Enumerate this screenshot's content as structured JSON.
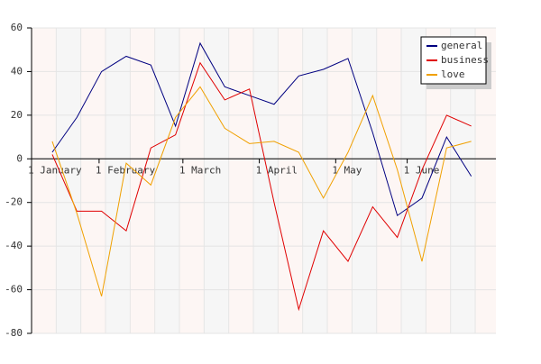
{
  "chart_data": {
    "type": "line",
    "x": [
      0,
      1,
      2,
      3,
      4,
      5,
      6,
      7,
      8,
      9,
      10,
      11,
      12,
      13,
      14,
      15,
      16,
      17
    ],
    "series": [
      {
        "name": "general",
        "color": "#000080",
        "values": [
          3,
          19,
          40,
          47,
          43,
          15,
          53,
          33,
          29,
          25,
          38,
          41,
          46,
          12,
          -26,
          -18,
          10,
          -8
        ]
      },
      {
        "name": "business",
        "color": "#e00000",
        "values": [
          2,
          -24,
          -24,
          -33,
          5,
          11,
          44,
          27,
          32,
          -20,
          -69,
          -33,
          -47,
          -22,
          -36,
          -5,
          20,
          15
        ]
      },
      {
        "name": "love",
        "color": "#f0a000",
        "values": [
          8,
          -25,
          -63,
          -2,
          -12,
          19,
          33,
          14,
          7,
          8,
          3,
          -18,
          3,
          29,
          -5,
          -47,
          5,
          8
        ]
      }
    ],
    "xlim": [
      -0.84,
      18
    ],
    "xticks": [
      {
        "value": -0.84,
        "label": "1 January"
      },
      {
        "value": 1.9,
        "label": "1 February"
      },
      {
        "value": 5.3,
        "label": "1 March"
      },
      {
        "value": 8.4,
        "label": "1 April"
      },
      {
        "value": 11.5,
        "label": "1 May"
      },
      {
        "value": 14.4,
        "label": "1 June"
      }
    ],
    "ylim": [
      -80,
      60
    ],
    "yticks": [
      -80,
      -60,
      -40,
      -20,
      0,
      20,
      40,
      60
    ],
    "grid": true,
    "legend": "upper-right"
  }
}
